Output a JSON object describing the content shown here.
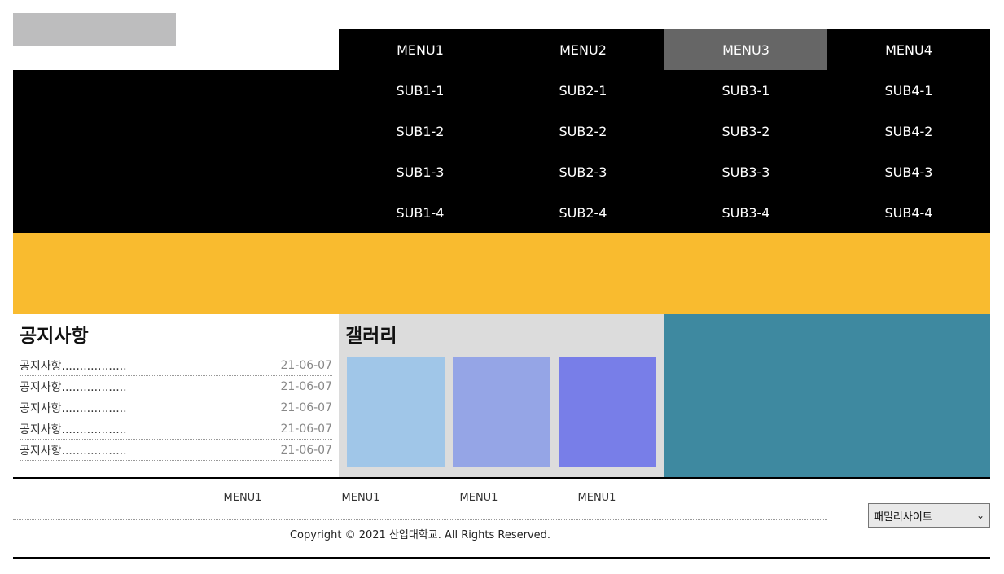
{
  "colors": {
    "logo": "#bdbdbe",
    "nav_bg": "#000000",
    "nav_active": "#666666",
    "banner": "#f9bb2f",
    "teal": "#3e89a0",
    "thumbs": [
      "#a0c6e8",
      "#95a5e6",
      "#787ee8"
    ]
  },
  "nav": {
    "items": [
      "MENU1",
      "MENU2",
      "MENU3",
      "MENU4"
    ],
    "active": "MENU3"
  },
  "submenus": [
    [
      "SUB1-1",
      "SUB1-2",
      "SUB1-3",
      "SUB1-4"
    ],
    [
      "SUB2-1",
      "SUB2-2",
      "SUB2-3",
      "SUB2-4"
    ],
    [
      "SUB3-1",
      "SUB3-2",
      "SUB3-3",
      "SUB3-4"
    ],
    [
      "SUB4-1",
      "SUB4-2",
      "SUB4-3",
      "SUB4-4"
    ]
  ],
  "notice": {
    "title": "공지사항",
    "items": [
      {
        "title": "공지사항..................",
        "date": "21-06-07"
      },
      {
        "title": "공지사항..................",
        "date": "21-06-07"
      },
      {
        "title": "공지사항..................",
        "date": "21-06-07"
      },
      {
        "title": "공지사항..................",
        "date": "21-06-07"
      },
      {
        "title": "공지사항..................",
        "date": "21-06-07"
      }
    ]
  },
  "gallery": {
    "title": "갤러리"
  },
  "footer": {
    "menu": [
      "MENU1",
      "MENU1",
      "MENU1",
      "MENU1"
    ],
    "copyright": "Copyright © 2021 산업대학교. All Rights Reserved.",
    "family_site": "패밀리사이트"
  }
}
